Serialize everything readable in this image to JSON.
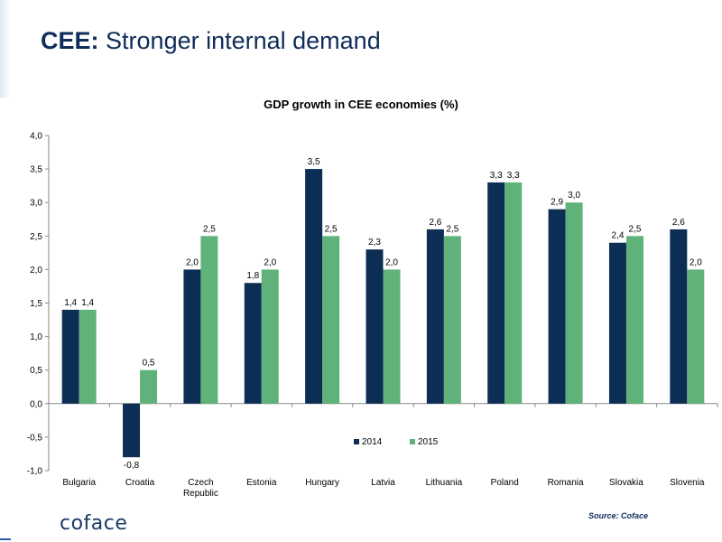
{
  "slide": {
    "title_strong": "CEE:",
    "title_rest": "Stronger internal demand",
    "logo": "coface",
    "source": "Source: Coface"
  },
  "colors": {
    "series_2014": "#0c2d54",
    "series_2015": "#5fb37a"
  },
  "chart_data": {
    "type": "bar",
    "title": "GDP growth in CEE economies (%)",
    "xlabel": "",
    "ylabel": "",
    "ylim": [
      -1.0,
      4.0
    ],
    "yticks": [
      "4,0",
      "3,5",
      "3,0",
      "2,5",
      "2,0",
      "1,5",
      "1,0",
      "0,5",
      "0,0",
      "-0,5",
      "-1,0"
    ],
    "categories": [
      "Bulgaria",
      "Croatia",
      "Czech Republic",
      "Estonia",
      "Hungary",
      "Latvia",
      "Lithuania",
      "Poland",
      "Romania",
      "Slovakia",
      "Slovenia"
    ],
    "category_lines": [
      [
        "Bulgaria"
      ],
      [
        "Croatia"
      ],
      [
        "Czech",
        "Republic"
      ],
      [
        "Estonia"
      ],
      [
        "Hungary"
      ],
      [
        "Latvia"
      ],
      [
        "Lithuania"
      ],
      [
        "Poland"
      ],
      [
        "Romania"
      ],
      [
        "Slovakia"
      ],
      [
        "Slovenia"
      ]
    ],
    "series": [
      {
        "name": "2014",
        "values": [
          1.4,
          -0.8,
          2.0,
          1.8,
          3.5,
          2.3,
          2.6,
          3.3,
          2.9,
          2.4,
          2.6
        ],
        "labels": [
          "1,4",
          "-0,8",
          "2,0",
          "1,8",
          "3,5",
          "2,3",
          "2,6",
          "3,3",
          "2,9",
          "2,4",
          "2,6"
        ]
      },
      {
        "name": "2015",
        "values": [
          1.4,
          0.5,
          2.5,
          2.0,
          2.5,
          2.0,
          2.5,
          3.3,
          3.0,
          2.5,
          2.0
        ],
        "labels": [
          "1,4",
          "0,5",
          "2,5",
          "2,0",
          "2,5",
          "2,0",
          "2,5",
          "3,3",
          "3,0",
          "2,5",
          "2,0"
        ]
      }
    ],
    "legend": "inside-bottom-right",
    "grid": false
  }
}
